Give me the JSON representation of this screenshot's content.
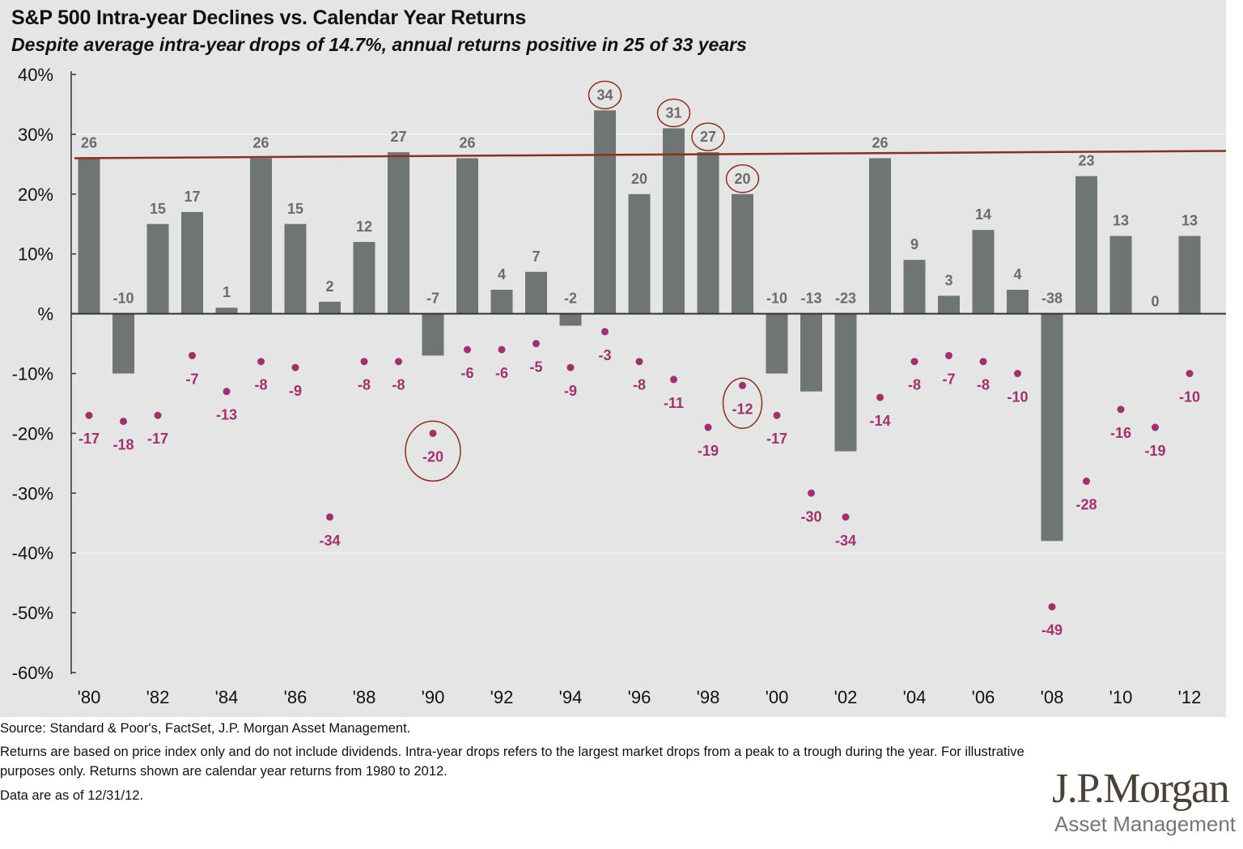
{
  "chart_data": {
    "type": "bar",
    "title": "S&P 500 Intra-year Declines vs. Calendar Year Returns",
    "subtitle": "Despite average intra-year drops of 14.7%, annual returns positive in 25 of 33 years",
    "x": [
      1980,
      1981,
      1982,
      1983,
      1984,
      1985,
      1986,
      1987,
      1988,
      1989,
      1990,
      1991,
      1992,
      1993,
      1994,
      1995,
      1996,
      1997,
      1998,
      1999,
      2000,
      2001,
      2002,
      2003,
      2004,
      2005,
      2006,
      2007,
      2008,
      2009,
      2010,
      2011,
      2012
    ],
    "x_tick_labels": [
      "'80",
      "'82",
      "'84",
      "'86",
      "'88",
      "'90",
      "'92",
      "'94",
      "'96",
      "'98",
      "'00",
      "'02",
      "'04",
      "'06",
      "'08",
      "'10",
      "'12"
    ],
    "ylim": [
      -60,
      40
    ],
    "y_tick_labels": [
      "40%",
      "30%",
      "20%",
      "10%",
      "%",
      "-10%",
      "-20%",
      "-30%",
      "-40%",
      "-50%",
      "-60%"
    ],
    "y_ticks": [
      40,
      30,
      20,
      10,
      0,
      -10,
      -20,
      -30,
      -40,
      -50,
      -60
    ],
    "series": [
      {
        "type": "bar",
        "color": "#6e7572",
        "values": [
          26,
          -10,
          15,
          17,
          1,
          26,
          15,
          2,
          12,
          27,
          -7,
          26,
          4,
          7,
          -2,
          34,
          20,
          31,
          27,
          20,
          -10,
          -13,
          -23,
          26,
          9,
          3,
          14,
          4,
          -38,
          23,
          13,
          0,
          13
        ]
      },
      {
        "type": "scatter",
        "color": "#a0306e",
        "values": [
          -17,
          -18,
          -17,
          -7,
          -13,
          -8,
          -9,
          -34,
          -8,
          -8,
          -20,
          -6,
          -6,
          -5,
          -9,
          -3,
          -8,
          -11,
          -19,
          -12,
          -17,
          -30,
          -34,
          -14,
          -8,
          -7,
          -8,
          -10,
          -49,
          -28,
          -16,
          -19,
          -10
        ]
      }
    ],
    "reference_line": {
      "color": "#8b2f1e"
    },
    "circled_years": [
      1990,
      1995,
      1997,
      1998,
      1999
    ],
    "grid": false
  },
  "footer": {
    "source": "Source: Standard & Poor's, FactSet, J.P. Morgan Asset Management.",
    "notes": "Returns are based on price index only and do not include dividends. Intra-year drops refers to the largest market drops from a peak to a trough during the year. For illustrative purposes only. Returns shown are calendar year returns from 1980 to 2012.",
    "date": "Data are as of 12/31/12."
  },
  "logo": {
    "name": "J.P.Morgan",
    "tagline": "Asset Management"
  },
  "colors": {
    "background": "#e4e5e4",
    "bar": "#6e7572",
    "drop": "#a0306e",
    "bar_label": "#6b6b6b"
  }
}
